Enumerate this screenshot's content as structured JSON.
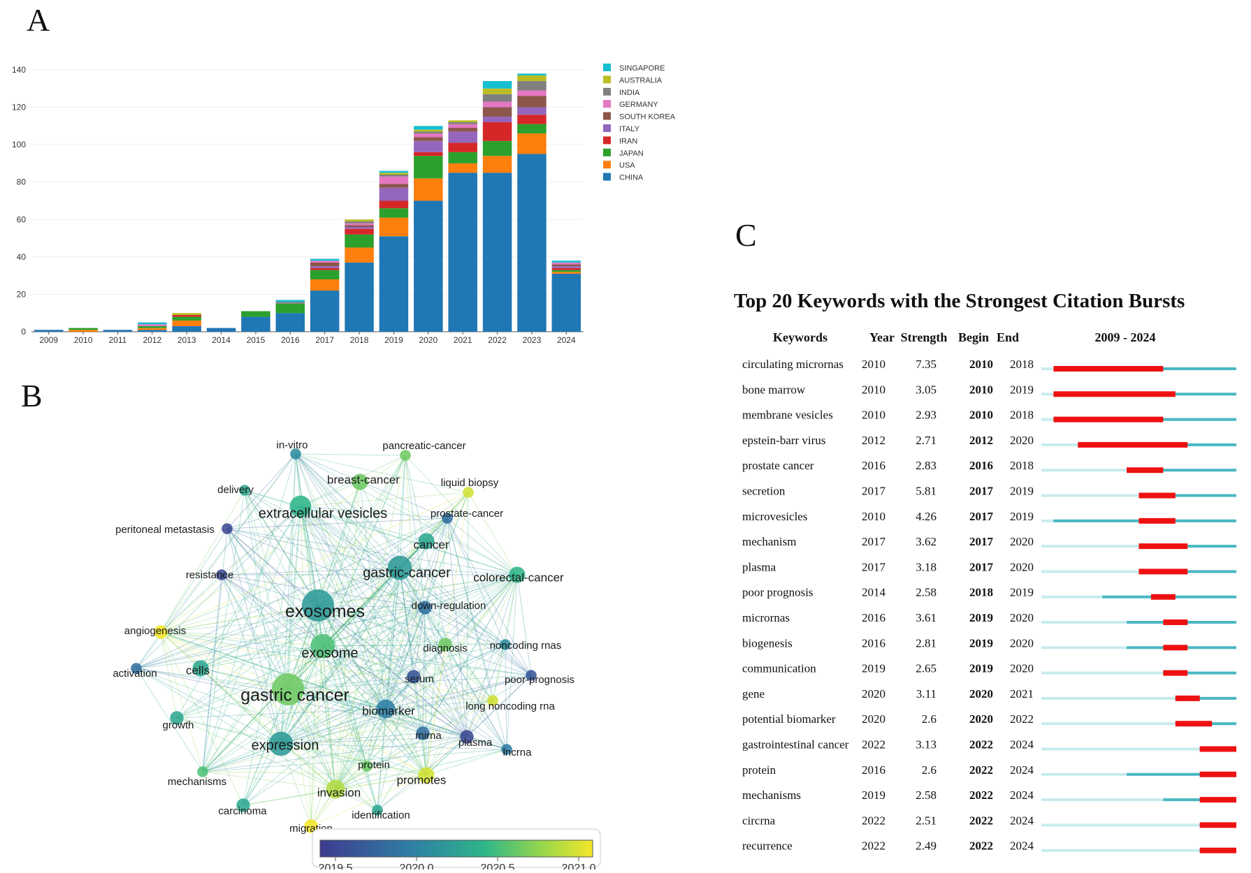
{
  "panels": {
    "a": "A",
    "b": "B",
    "c": "C"
  },
  "chart_data": [
    {
      "type": "bar",
      "stacked": true,
      "categories": [
        "2009",
        "2010",
        "2011",
        "2012",
        "2013",
        "2014",
        "2015",
        "2016",
        "2017",
        "2018",
        "2019",
        "2020",
        "2021",
        "2022",
        "2023",
        "2024"
      ],
      "ylim": [
        0,
        140
      ],
      "yticks": [
        0,
        20,
        40,
        60,
        80,
        100,
        120,
        140
      ],
      "legend_position": "right",
      "series": [
        {
          "name": "CHINA",
          "color": "#1f77b4",
          "values": [
            1,
            0,
            1,
            1,
            3,
            2,
            8,
            10,
            22,
            37,
            51,
            70,
            85,
            85,
            95,
            31
          ]
        },
        {
          "name": "USA",
          "color": "#ff7f0e",
          "values": [
            0,
            1,
            0,
            1,
            3,
            0,
            0,
            0,
            6,
            8,
            10,
            12,
            5,
            9,
            11,
            1
          ]
        },
        {
          "name": "JAPAN",
          "color": "#2ca02c",
          "values": [
            0,
            1,
            0,
            1,
            2,
            0,
            3,
            5,
            5,
            7,
            5,
            12,
            6,
            8,
            5,
            1
          ]
        },
        {
          "name": "IRAN",
          "color": "#d62728",
          "values": [
            0,
            0,
            0,
            0,
            1,
            0,
            0,
            0,
            1,
            3,
            4,
            2,
            5,
            10,
            5,
            1
          ]
        },
        {
          "name": "ITALY",
          "color": "#9467bd",
          "values": [
            0,
            0,
            0,
            0,
            0,
            0,
            0,
            0,
            1,
            1,
            7,
            6,
            6,
            3,
            4,
            1
          ]
        },
        {
          "name": "SOUTH KOREA",
          "color": "#8c564b",
          "values": [
            0,
            0,
            0,
            0,
            0,
            0,
            0,
            0,
            2,
            1,
            2,
            2,
            2,
            5,
            6,
            1
          ]
        },
        {
          "name": "GERMANY",
          "color": "#e377c2",
          "values": [
            0,
            0,
            0,
            1,
            0,
            0,
            0,
            0,
            1,
            1,
            4,
            2,
            2,
            3,
            3,
            1
          ]
        },
        {
          "name": "INDIA",
          "color": "#7f7f7f",
          "values": [
            0,
            0,
            0,
            0,
            0,
            0,
            0,
            1,
            0,
            1,
            1,
            1,
            1,
            4,
            5,
            0
          ]
        },
        {
          "name": "AUSTRALIA",
          "color": "#bcbd22",
          "values": [
            0,
            0,
            0,
            0,
            1,
            0,
            0,
            0,
            0,
            1,
            1,
            1,
            1,
            3,
            3,
            0
          ]
        },
        {
          "name": "SINGAPORE",
          "color": "#17becf",
          "values": [
            0,
            0,
            0,
            1,
            0,
            0,
            0,
            1,
            1,
            0,
            1,
            2,
            0,
            4,
            1,
            1
          ]
        }
      ]
    },
    {
      "type": "network",
      "colorbar": {
        "min": 2019.5,
        "max": 2021.0,
        "ticks": [
          "2019.5",
          "2020.0",
          "2020.5",
          "2021.0"
        ]
      },
      "nodes": [
        {
          "label": "exosomes",
          "weight": 10,
          "year": 2020.2
        },
        {
          "label": "gastric cancer",
          "weight": 10,
          "year": 2020.6
        },
        {
          "label": "exosome",
          "weight": 7,
          "year": 2020.5
        },
        {
          "label": "gastric-cancer",
          "weight": 7,
          "year": 2020.2
        },
        {
          "label": "expression",
          "weight": 7,
          "year": 2020.2
        },
        {
          "label": "extracellular vesicles",
          "weight": 6,
          "year": 2020.4
        },
        {
          "label": "biomarker",
          "weight": 5,
          "year": 2020.0
        },
        {
          "label": "invasion",
          "weight": 5,
          "year": 2020.8
        },
        {
          "label": "cancer",
          "weight": 4,
          "year": 2020.3
        },
        {
          "label": "colorectal-cancer",
          "weight": 4,
          "year": 2020.4
        },
        {
          "label": "cells",
          "weight": 4,
          "year": 2020.3
        },
        {
          "label": "breast-cancer",
          "weight": 4,
          "year": 2020.6
        },
        {
          "label": "promotes",
          "weight": 4,
          "year": 2020.9
        },
        {
          "label": "diagnosis",
          "weight": 3,
          "year": 2020.6
        },
        {
          "label": "migration",
          "weight": 3,
          "year": 2021.0
        },
        {
          "label": "angiogenesis",
          "weight": 3,
          "year": 2021.0
        },
        {
          "label": "growth",
          "weight": 3,
          "year": 2020.3
        },
        {
          "label": "carcinoma",
          "weight": 3,
          "year": 2020.3
        },
        {
          "label": "down-regulation",
          "weight": 3,
          "year": 2019.9
        },
        {
          "label": "serum",
          "weight": 3,
          "year": 2019.7
        },
        {
          "label": "mirna",
          "weight": 3,
          "year": 2019.9
        },
        {
          "label": "plasma",
          "weight": 3,
          "year": 2019.6
        },
        {
          "label": "protein",
          "weight": 2,
          "year": 2020.6
        },
        {
          "label": "identification",
          "weight": 2,
          "year": 2020.3
        },
        {
          "label": "mechanisms",
          "weight": 2,
          "year": 2020.5
        },
        {
          "label": "resistance",
          "weight": 2,
          "year": 2019.6
        },
        {
          "label": "delivery",
          "weight": 2,
          "year": 2020.3
        },
        {
          "label": "in-vitro",
          "weight": 2,
          "year": 2020.1
        },
        {
          "label": "pancreatic-cancer",
          "weight": 2,
          "year": 2020.6
        },
        {
          "label": "liquid biopsy",
          "weight": 2,
          "year": 2020.9
        },
        {
          "label": "prostate-cancer",
          "weight": 2,
          "year": 2019.9
        },
        {
          "label": "peritoneal metastasis",
          "weight": 2,
          "year": 2019.6
        },
        {
          "label": "activation",
          "weight": 2,
          "year": 2019.9
        },
        {
          "label": "noncoding rnas",
          "weight": 2,
          "year": 2020.1
        },
        {
          "label": "poor-prognosis",
          "weight": 2,
          "year": 2019.7
        },
        {
          "label": "long noncoding rna",
          "weight": 2,
          "year": 2020.9
        },
        {
          "label": "lncrna",
          "weight": 2,
          "year": 2020.0
        }
      ]
    },
    {
      "type": "table",
      "title": "Top 20 Keywords with the Strongest Citation Bursts",
      "columns": [
        "Keywords",
        "Year",
        "Strength",
        "Begin",
        "End",
        "2009 - 2024"
      ],
      "range": [
        2009,
        2024
      ],
      "rows": [
        {
          "keyword": "circulating micrornas",
          "year": 2010,
          "strength": "7.35",
          "begin": 2010,
          "end": 2018
        },
        {
          "keyword": "bone marrow",
          "year": 2010,
          "strength": "3.05",
          "begin": 2010,
          "end": 2019
        },
        {
          "keyword": "membrane vesicles",
          "year": 2010,
          "strength": "2.93",
          "begin": 2010,
          "end": 2018
        },
        {
          "keyword": "epstein-barr virus",
          "year": 2012,
          "strength": "2.71",
          "begin": 2012,
          "end": 2020
        },
        {
          "keyword": "prostate cancer",
          "year": 2016,
          "strength": "2.83",
          "begin": 2016,
          "end": 2018
        },
        {
          "keyword": "secretion",
          "year": 2017,
          "strength": "5.81",
          "begin": 2017,
          "end": 2019
        },
        {
          "keyword": "microvesicles",
          "year": 2010,
          "strength": "4.26",
          "begin": 2017,
          "end": 2019
        },
        {
          "keyword": "mechanism",
          "year": 2017,
          "strength": "3.62",
          "begin": 2017,
          "end": 2020
        },
        {
          "keyword": "plasma",
          "year": 2017,
          "strength": "3.18",
          "begin": 2017,
          "end": 2020
        },
        {
          "keyword": "poor prognosis",
          "year": 2014,
          "strength": "2.58",
          "begin": 2018,
          "end": 2019
        },
        {
          "keyword": "micrornas",
          "year": 2016,
          "strength": "3.61",
          "begin": 2019,
          "end": 2020
        },
        {
          "keyword": "biogenesis",
          "year": 2016,
          "strength": "2.81",
          "begin": 2019,
          "end": 2020
        },
        {
          "keyword": "communication",
          "year": 2019,
          "strength": "2.65",
          "begin": 2019,
          "end": 2020
        },
        {
          "keyword": "gene",
          "year": 2020,
          "strength": "3.11",
          "begin": 2020,
          "end": 2021
        },
        {
          "keyword": "potential biomarker",
          "year": 2020,
          "strength": "2.6",
          "begin": 2020,
          "end": 2022
        },
        {
          "keyword": "gastrointestinal cancer",
          "year": 2022,
          "strength": "3.13",
          "begin": 2022,
          "end": 2024
        },
        {
          "keyword": "protein",
          "year": 2016,
          "strength": "2.6",
          "begin": 2022,
          "end": 2024
        },
        {
          "keyword": "mechanisms",
          "year": 2019,
          "strength": "2.58",
          "begin": 2022,
          "end": 2024
        },
        {
          "keyword": "circrna",
          "year": 2022,
          "strength": "2.51",
          "begin": 2022,
          "end": 2024
        },
        {
          "keyword": "recurrence",
          "year": 2022,
          "strength": "2.49",
          "begin": 2022,
          "end": 2024
        }
      ]
    }
  ]
}
